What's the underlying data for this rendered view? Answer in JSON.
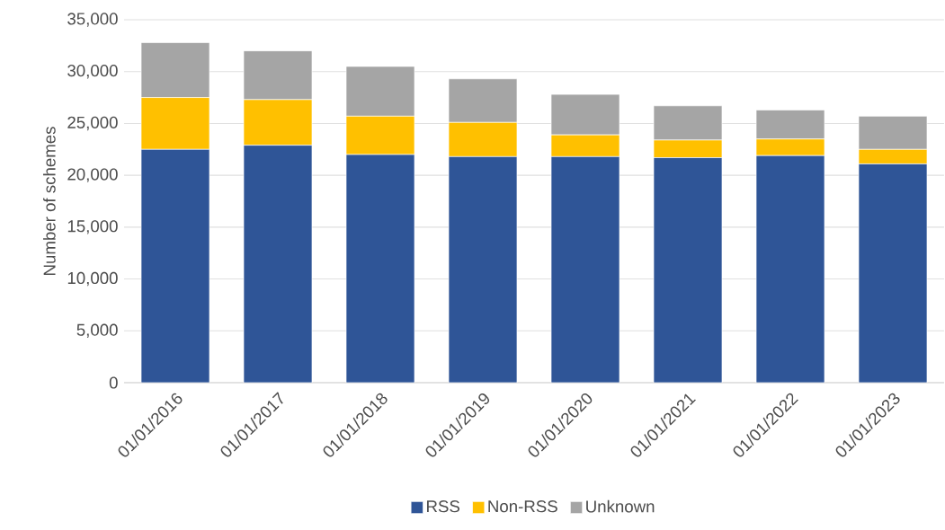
{
  "chart_data": {
    "type": "bar",
    "stacked": true,
    "ylabel": "Number of schemes",
    "categories": [
      "01/01/2016",
      "01/01/2017",
      "01/01/2018",
      "01/01/2019",
      "01/01/2020",
      "01/01/2021",
      "01/01/2022",
      "01/01/2023"
    ],
    "series": [
      {
        "name": "RSS",
        "color": "#2f5597",
        "values": [
          22500,
          22900,
          22000,
          21800,
          21800,
          21700,
          21900,
          21100
        ]
      },
      {
        "name": "Non-RSS",
        "color": "#ffc000",
        "values": [
          5000,
          4400,
          3700,
          3300,
          2100,
          1700,
          1600,
          1400
        ]
      },
      {
        "name": "Unknown",
        "color": "#a5a5a5",
        "values": [
          5300,
          4700,
          4800,
          4200,
          3900,
          3300,
          2800,
          3200
        ]
      }
    ],
    "ylim": [
      0,
      35000
    ],
    "yticks": [
      0,
      {
        "value": 5000,
        "label": "5,000"
      },
      {
        "value": 10000,
        "label": "10,000"
      },
      {
        "value": 15000,
        "label": "15,000"
      },
      {
        "value": 20000,
        "label": "20,000"
      },
      {
        "value": 25000,
        "label": "25,000"
      },
      {
        "value": 30000,
        "label": "30,000"
      },
      {
        "value": 35000,
        "label": "35,000"
      }
    ],
    "grid": "y",
    "legend": "bottom"
  }
}
